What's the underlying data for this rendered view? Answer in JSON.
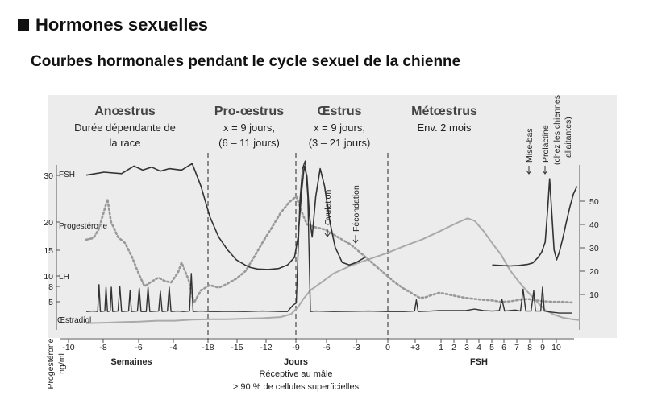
{
  "heading": "Hormones sexuelles",
  "subheading": "Courbes hormonales pendant le cycle sexuel de la chienne",
  "chart_data": {
    "type": "line",
    "title": "Courbes hormonales pendant le cycle sexuel de la chienne",
    "phases": [
      {
        "name": "Anœstrus",
        "desc": [
          "Durée dépendante de",
          "la race"
        ]
      },
      {
        "name": "Pro-œstrus",
        "desc": [
          "x = 9 jours,",
          "(6 – 11 jours)"
        ]
      },
      {
        "name": "Œstrus",
        "desc": [
          "x = 9 jours,",
          "(3 – 21 jours)"
        ]
      },
      {
        "name": "Métœstrus",
        "desc": [
          "Env. 2 mois"
        ]
      }
    ],
    "x_ticks": [
      "-10",
      "-8",
      "-6",
      "-4",
      "-18",
      "-15",
      "-12",
      "-9",
      "-6",
      "-3",
      "0",
      "+3",
      "1",
      "2",
      "3",
      "4",
      "5",
      "6",
      "7",
      "8",
      "9",
      "10"
    ],
    "x_group_labels": [
      "Semaines",
      "Jours",
      "FSH"
    ],
    "y_left_ticks": [
      30,
      20,
      15,
      10,
      8,
      5
    ],
    "y_right_ticks": [
      50,
      40,
      30,
      20,
      10
    ],
    "y_left_label": [
      "Progestérone",
      "ng/ml"
    ],
    "series_labels": [
      "FSH",
      "Progestérone",
      "LH",
      "Œstradiol"
    ],
    "event_labels": [
      "Ovulation",
      "Fécondation",
      "Mise-bas",
      "Prolactine",
      "(chez les chiennes",
      "allaitantes)"
    ],
    "footnote": [
      "Réceptive au mâle",
      "> 90 % de cellules superficielles"
    ],
    "series": [
      {
        "name": "FSH",
        "style": "solid-dark",
        "points": [
          [
            0,
            30.2
          ],
          [
            1,
            30.8
          ],
          [
            2,
            30.5
          ],
          [
            2.7,
            32
          ],
          [
            3.2,
            31.2
          ],
          [
            3.7,
            31.8
          ],
          [
            4.2,
            31
          ],
          [
            4.7,
            31.5
          ],
          [
            5.4,
            31.2
          ],
          [
            6,
            32.5
          ],
          [
            6.5,
            28
          ],
          [
            7,
            22
          ],
          [
            7.5,
            18
          ],
          [
            8,
            15.5
          ],
          [
            8.5,
            13.5
          ],
          [
            9,
            12.5
          ],
          [
            9.3,
            12
          ],
          [
            9.7,
            11.7
          ],
          [
            10.3,
            11.6
          ],
          [
            10.9,
            11.8
          ],
          [
            11.4,
            12.5
          ],
          [
            11.8,
            14
          ],
          [
            12,
            18
          ],
          [
            12.2,
            27
          ],
          [
            12.35,
            32
          ],
          [
            12.5,
            30
          ],
          [
            12.65,
            22
          ],
          [
            12.8,
            18
          ],
          [
            13,
            26
          ],
          [
            13.25,
            31.5
          ],
          [
            13.5,
            28
          ],
          [
            13.8,
            21
          ],
          [
            14.1,
            16
          ],
          [
            14.5,
            13
          ],
          [
            14.9,
            12.5
          ],
          [
            15.3,
            13
          ],
          [
            15.8,
            14
          ]
        ]
      },
      {
        "name": "Progestérone",
        "style": "dotted-gray",
        "points": [
          [
            0,
            17.5
          ],
          [
            0.4,
            17.8
          ],
          [
            0.7,
            19.5
          ],
          [
            1,
            23
          ],
          [
            1.2,
            25.5
          ],
          [
            1.4,
            21
          ],
          [
            1.8,
            18
          ],
          [
            2.2,
            16.8
          ],
          [
            2.6,
            14
          ],
          [
            3,
            10.5
          ],
          [
            3.3,
            8.3
          ],
          [
            3.7,
            9.2
          ],
          [
            4.1,
            10
          ],
          [
            4.4,
            9.4
          ],
          [
            4.8,
            9
          ],
          [
            5.2,
            11
          ],
          [
            5.4,
            13
          ],
          [
            5.8,
            9.5
          ],
          [
            6.1,
            5
          ],
          [
            6.5,
            7.5
          ],
          [
            7,
            8.5
          ],
          [
            7.5,
            8
          ],
          [
            8,
            8.8
          ],
          [
            8.5,
            9.8
          ],
          [
            9,
            11.2
          ],
          [
            9.5,
            14
          ],
          [
            10,
            17
          ],
          [
            10.5,
            19.8
          ],
          [
            11,
            22.7
          ],
          [
            11.5,
            24.9
          ],
          [
            11.9,
            26
          ],
          [
            12.2,
            23
          ],
          [
            12.5,
            20.5
          ],
          [
            12.9,
            20
          ],
          [
            13.5,
            19.5
          ],
          [
            14,
            18.5
          ],
          [
            14.5,
            17.5
          ],
          [
            15,
            16.5
          ],
          [
            15.5,
            15
          ],
          [
            16,
            13.5
          ],
          [
            16.5,
            12
          ],
          [
            17,
            10.5
          ],
          [
            17.5,
            9
          ],
          [
            18,
            7.8
          ],
          [
            18.5,
            6.8
          ],
          [
            18.9,
            6
          ],
          [
            19.2,
            6.1
          ],
          [
            19.5,
            6.5
          ],
          [
            20,
            7
          ],
          [
            20.5,
            6.7
          ],
          [
            21,
            6.3
          ],
          [
            21.5,
            6
          ],
          [
            22,
            5.8
          ],
          [
            22.5,
            5.6
          ],
          [
            23,
            5.5
          ],
          [
            23.5,
            5.2
          ],
          [
            24,
            5.3
          ],
          [
            24.5,
            5.6
          ],
          [
            25,
            5.8
          ],
          [
            25.5,
            5.5
          ],
          [
            26,
            5.3
          ],
          [
            26.5,
            5.2
          ],
          [
            27,
            5.2
          ],
          [
            27.5,
            5.1
          ]
        ]
      },
      {
        "name": "LH",
        "style": "solid-dark-pulses",
        "points": [
          [
            0,
            3.3
          ],
          [
            0.4,
            3.4
          ],
          [
            0.65,
            3.3
          ],
          [
            0.72,
            8.6
          ],
          [
            0.8,
            3.3
          ],
          [
            1.05,
            3.4
          ],
          [
            1.12,
            8.1
          ],
          [
            1.2,
            3.3
          ],
          [
            1.35,
            3.4
          ],
          [
            1.42,
            8.1
          ],
          [
            1.5,
            3.3
          ],
          [
            1.8,
            3.4
          ],
          [
            1.9,
            8.3
          ],
          [
            2,
            3.3
          ],
          [
            2.4,
            3.4
          ],
          [
            2.48,
            7.4
          ],
          [
            2.56,
            3.3
          ],
          [
            2.9,
            3.4
          ],
          [
            3,
            7.9
          ],
          [
            3.1,
            3.3
          ],
          [
            3.4,
            3.3
          ],
          [
            3.5,
            8.1
          ],
          [
            3.6,
            3.3
          ],
          [
            4.1,
            3.4
          ],
          [
            4.2,
            7.3
          ],
          [
            4.3,
            3.3
          ],
          [
            4.6,
            3.4
          ],
          [
            4.7,
            8.1
          ],
          [
            4.8,
            3.3
          ],
          [
            5.2,
            3.4
          ],
          [
            5.5,
            3.3
          ],
          [
            5.85,
            3.4
          ],
          [
            5.95,
            10.8
          ],
          [
            6.05,
            3.3
          ],
          [
            6.5,
            3.4
          ],
          [
            7,
            3.3
          ],
          [
            7.5,
            3.3
          ],
          [
            8,
            3.35
          ],
          [
            9,
            3.3
          ],
          [
            10,
            3.4
          ],
          [
            11,
            3.3
          ],
          [
            11.4,
            3.3
          ],
          [
            11.7,
            4.5
          ],
          [
            11.9,
            5
          ],
          [
            12.1,
            25
          ],
          [
            12.25,
            31.5
          ],
          [
            12.4,
            33
          ],
          [
            12.55,
            26
          ],
          [
            12.7,
            3.3
          ],
          [
            13,
            3.4
          ],
          [
            14,
            3.3
          ],
          [
            15,
            3.35
          ],
          [
            16,
            3.4
          ],
          [
            17,
            3.3
          ],
          [
            18,
            3.3
          ],
          [
            18.6,
            3.4
          ],
          [
            18.7,
            5.6
          ],
          [
            18.8,
            3.3
          ],
          [
            19.5,
            3.4
          ],
          [
            20,
            3.5
          ],
          [
            21,
            3.5
          ],
          [
            21.5,
            3.5
          ],
          [
            22,
            3.8
          ],
          [
            22.5,
            3.5
          ],
          [
            23,
            3.4
          ],
          [
            23.4,
            3.5
          ],
          [
            23.55,
            5.7
          ],
          [
            23.7,
            3.4
          ],
          [
            24.3,
            3.6
          ],
          [
            24.6,
            3.4
          ],
          [
            24.75,
            7.7
          ],
          [
            24.9,
            3.4
          ],
          [
            25.2,
            3.4
          ],
          [
            25.35,
            7.4
          ],
          [
            25.45,
            3.4
          ],
          [
            25.75,
            3.4
          ],
          [
            25.85,
            8.1
          ],
          [
            25.95,
            3.4
          ],
          [
            26.3,
            3.2
          ],
          [
            26.8,
            3
          ],
          [
            27.5,
            3
          ]
        ]
      },
      {
        "name": "Œstradiol",
        "style": "solid-gray",
        "points": [
          [
            0,
            1.0
          ],
          [
            1,
            1.1
          ],
          [
            2,
            1.2
          ],
          [
            3,
            1.3
          ],
          [
            4,
            1.5
          ],
          [
            5,
            1.5
          ],
          [
            6,
            1.7
          ],
          [
            7,
            1.8
          ],
          [
            8,
            1.8
          ],
          [
            9,
            1.9
          ],
          [
            10,
            2.0
          ],
          [
            11,
            2.2
          ],
          [
            11.6,
            2.8
          ],
          [
            12,
            4.2
          ],
          [
            12.3,
            5.8
          ],
          [
            12.7,
            7.5
          ],
          [
            13.3,
            9
          ],
          [
            14,
            10.8
          ],
          [
            15,
            12.4
          ],
          [
            16,
            13.6
          ],
          [
            17,
            14.8
          ],
          [
            18,
            16.2
          ],
          [
            19,
            17.5
          ],
          [
            20,
            19.1
          ],
          [
            21,
            20.8
          ],
          [
            21.6,
            21.7
          ],
          [
            22,
            21.2
          ],
          [
            22.5,
            19.2
          ],
          [
            23,
            16.8
          ],
          [
            23.5,
            14.5
          ],
          [
            24,
            11.5
          ],
          [
            24.5,
            9.2
          ],
          [
            25,
            7.2
          ],
          [
            25.5,
            5.3
          ],
          [
            26,
            3.6
          ],
          [
            26.5,
            2.7
          ],
          [
            27,
            2.1
          ],
          [
            27.5,
            1.8
          ],
          [
            28,
            1.6
          ]
        ]
      },
      {
        "name": "Prolactine",
        "style": "solid-dark",
        "points": [
          [
            23,
            12.5
          ],
          [
            23.5,
            12.4
          ],
          [
            24,
            12.3
          ],
          [
            24.5,
            12.4
          ],
          [
            25,
            12.6
          ],
          [
            25.3,
            12.9
          ],
          [
            25.6,
            14
          ],
          [
            25.8,
            15
          ],
          [
            26,
            17
          ],
          [
            26.15,
            24
          ],
          [
            26.25,
            29.5
          ],
          [
            26.35,
            24
          ],
          [
            26.5,
            15.5
          ],
          [
            26.65,
            13.5
          ],
          [
            26.8,
            15
          ],
          [
            27,
            17.8
          ],
          [
            27.2,
            21
          ],
          [
            27.4,
            24
          ],
          [
            27.6,
            26.5
          ],
          [
            27.8,
            28
          ]
        ]
      }
    ]
  }
}
